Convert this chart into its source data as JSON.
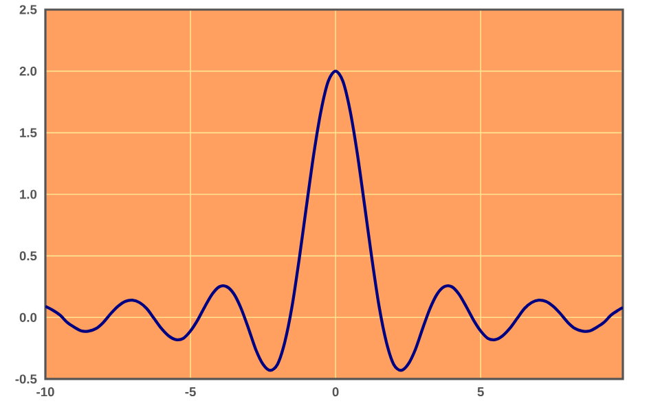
{
  "chart_data": {
    "type": "line",
    "x": [
      -10,
      -9.75,
      -9.5,
      -9.25,
      -9,
      -8.75,
      -8.5,
      -8.25,
      -8,
      -7.75,
      -7.5,
      -7.25,
      -7,
      -6.75,
      -6.5,
      -6.25,
      -6,
      -5.75,
      -5.5,
      -5.25,
      -5,
      -4.75,
      -4.5,
      -4.25,
      -4,
      -3.75,
      -3.5,
      -3.25,
      -3,
      -2.75,
      -2.5,
      -2.25,
      -2,
      -1.75,
      -1.5,
      -1.25,
      -1,
      -0.75,
      -0.5,
      -0.25,
      0,
      0.25,
      0.5,
      0.75,
      1,
      1.25,
      1.5,
      1.75,
      2,
      2.25,
      2.5,
      2.75,
      3,
      3.25,
      3.5,
      3.75,
      4,
      4.25,
      4.5,
      4.75,
      5,
      5.25,
      5.5,
      5.75,
      6,
      6.25,
      6.5,
      6.75,
      7,
      7.25,
      7.5,
      7.75,
      8,
      8.25,
      8.5,
      8.75,
      9,
      9.25,
      9.5,
      9.75,
      9.9
    ],
    "series": [
      {
        "color": "#000080",
        "values": [
          0.09,
          0.06,
          0.02,
          -0.04,
          -0.08,
          -0.11,
          -0.11,
          -0.09,
          -0.04,
          0.03,
          0.09,
          0.13,
          0.14,
          0.12,
          0.07,
          -0.01,
          -0.09,
          -0.15,
          -0.18,
          -0.17,
          -0.11,
          -0.02,
          0.09,
          0.19,
          0.25,
          0.25,
          0.19,
          0.07,
          -0.09,
          -0.26,
          -0.38,
          -0.43,
          -0.38,
          -0.2,
          0.09,
          0.48,
          0.91,
          1.33,
          1.68,
          1.92,
          2,
          1.92,
          1.68,
          1.33,
          0.91,
          0.48,
          0.09,
          -0.2,
          -0.38,
          -0.43,
          -0.38,
          -0.26,
          -0.09,
          0.07,
          0.19,
          0.25,
          0.25,
          0.19,
          0.09,
          -0.02,
          -0.11,
          -0.17,
          -0.18,
          -0.15,
          -0.09,
          -0.01,
          0.07,
          0.12,
          0.14,
          0.13,
          0.09,
          0.03,
          -0.04,
          -0.09,
          -0.11,
          -0.11,
          -0.08,
          -0.04,
          0.02,
          0.06,
          0.08
        ]
      }
    ],
    "xlim": [
      -10,
      9.9
    ],
    "ylim": [
      -0.5,
      2.5
    ],
    "xticks": [
      -10,
      -5,
      0,
      5
    ],
    "yticks": [
      {
        "value": -0.5,
        "label": "-0.5"
      },
      {
        "value": 0,
        "label": "0.0"
      },
      {
        "value": 0.5,
        "label": "0.5"
      },
      {
        "value": 1,
        "label": "1.0"
      },
      {
        "value": 1.5,
        "label": "1.5"
      },
      {
        "value": 2,
        "label": "2.0"
      },
      {
        "value": 2.5,
        "label": "2.5"
      }
    ],
    "grid": true
  }
}
